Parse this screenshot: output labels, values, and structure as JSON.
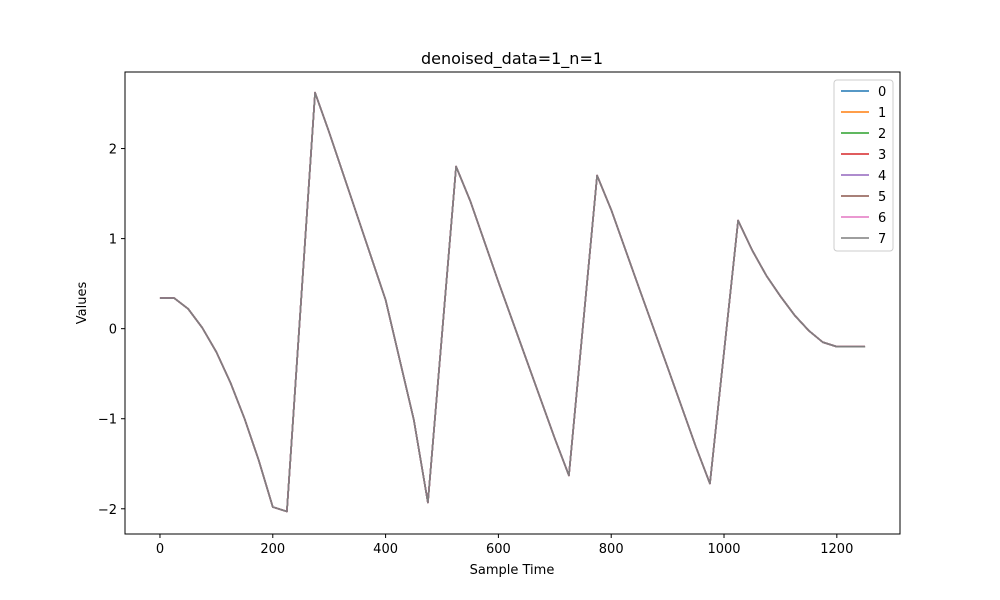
{
  "chart_data": {
    "type": "line",
    "title": "denoised_data=1_n=1",
    "xlabel": "Sample Time",
    "ylabel": "Values",
    "xlim": [
      -62,
      1312
    ],
    "ylim": [
      -2.28,
      2.85
    ],
    "xticks": [
      0,
      200,
      400,
      600,
      800,
      1000,
      1200
    ],
    "yticks": [
      -2,
      -1,
      0,
      1,
      2
    ],
    "xtick_labels": [
      "0",
      "200",
      "400",
      "600",
      "800",
      "1000",
      "1200"
    ],
    "ytick_labels": [
      "−2",
      "−1",
      "0",
      "1",
      "2"
    ],
    "grid": false,
    "legend_position": "top-right",
    "x": [
      0,
      25,
      50,
      75,
      100,
      125,
      150,
      175,
      200,
      225,
      275,
      300,
      350,
      400,
      450,
      475,
      525,
      550,
      600,
      650,
      700,
      725,
      775,
      800,
      850,
      900,
      950,
      975,
      1025,
      1050,
      1075,
      1100,
      1125,
      1150,
      1175,
      1200,
      1250
    ],
    "series": [
      {
        "name": "0",
        "color": "#1f77b4",
        "values": [
          0.34,
          0.34,
          0.22,
          0.01,
          -0.26,
          -0.6,
          -1.0,
          -1.46,
          -1.98,
          -2.03,
          2.62,
          2.18,
          1.25,
          0.32,
          -1.01,
          -1.93,
          1.8,
          1.42,
          0.52,
          -0.35,
          -1.22,
          -1.63,
          1.7,
          1.32,
          0.44,
          -0.43,
          -1.31,
          -1.72,
          1.2,
          0.87,
          0.59,
          0.36,
          0.15,
          -0.02,
          -0.15,
          -0.2,
          -0.2
        ]
      },
      {
        "name": "1",
        "color": "#ff7f0e",
        "values": [
          0.34,
          0.34,
          0.22,
          0.01,
          -0.26,
          -0.6,
          -1.0,
          -1.46,
          -1.98,
          -2.03,
          2.62,
          2.18,
          1.25,
          0.32,
          -1.01,
          -1.93,
          1.8,
          1.42,
          0.52,
          -0.35,
          -1.22,
          -1.63,
          1.7,
          1.32,
          0.44,
          -0.43,
          -1.31,
          -1.72,
          1.2,
          0.87,
          0.59,
          0.36,
          0.15,
          -0.02,
          -0.15,
          -0.2,
          -0.2
        ]
      },
      {
        "name": "2",
        "color": "#2ca02c",
        "values": [
          0.34,
          0.34,
          0.22,
          0.01,
          -0.26,
          -0.6,
          -1.0,
          -1.46,
          -1.98,
          -2.03,
          2.62,
          2.18,
          1.25,
          0.32,
          -1.01,
          -1.93,
          1.8,
          1.42,
          0.52,
          -0.35,
          -1.22,
          -1.63,
          1.7,
          1.32,
          0.44,
          -0.43,
          -1.31,
          -1.72,
          1.2,
          0.87,
          0.59,
          0.36,
          0.15,
          -0.02,
          -0.15,
          -0.2,
          -0.2
        ]
      },
      {
        "name": "3",
        "color": "#d62728",
        "values": [
          0.34,
          0.34,
          0.22,
          0.01,
          -0.26,
          -0.6,
          -1.0,
          -1.46,
          -1.98,
          -2.03,
          2.62,
          2.18,
          1.25,
          0.32,
          -1.01,
          -1.93,
          1.8,
          1.42,
          0.52,
          -0.35,
          -1.22,
          -1.63,
          1.7,
          1.32,
          0.44,
          -0.43,
          -1.31,
          -1.72,
          1.2,
          0.87,
          0.59,
          0.36,
          0.15,
          -0.02,
          -0.15,
          -0.2,
          -0.2
        ]
      },
      {
        "name": "4",
        "color": "#9467bd",
        "values": [
          0.34,
          0.34,
          0.22,
          0.01,
          -0.26,
          -0.6,
          -1.0,
          -1.46,
          -1.98,
          -2.03,
          2.62,
          2.18,
          1.25,
          0.32,
          -1.01,
          -1.93,
          1.8,
          1.42,
          0.52,
          -0.35,
          -1.22,
          -1.63,
          1.7,
          1.32,
          0.44,
          -0.43,
          -1.31,
          -1.72,
          1.2,
          0.87,
          0.59,
          0.36,
          0.15,
          -0.02,
          -0.15,
          -0.2,
          -0.2
        ]
      },
      {
        "name": "5",
        "color": "#8c564b",
        "values": [
          0.34,
          0.34,
          0.22,
          0.01,
          -0.26,
          -0.6,
          -1.0,
          -1.46,
          -1.98,
          -2.03,
          2.62,
          2.18,
          1.25,
          0.32,
          -1.01,
          -1.93,
          1.8,
          1.42,
          0.52,
          -0.35,
          -1.22,
          -1.63,
          1.7,
          1.32,
          0.44,
          -0.43,
          -1.31,
          -1.72,
          1.2,
          0.87,
          0.59,
          0.36,
          0.15,
          -0.02,
          -0.15,
          -0.2,
          -0.2
        ]
      },
      {
        "name": "6",
        "color": "#e377c2",
        "values": [
          0.34,
          0.34,
          0.22,
          0.01,
          -0.26,
          -0.6,
          -1.0,
          -1.46,
          -1.98,
          -2.03,
          2.62,
          2.18,
          1.25,
          0.32,
          -1.01,
          -1.93,
          1.8,
          1.42,
          0.52,
          -0.35,
          -1.22,
          -1.63,
          1.7,
          1.32,
          0.44,
          -0.43,
          -1.31,
          -1.72,
          1.2,
          0.87,
          0.59,
          0.36,
          0.15,
          -0.02,
          -0.15,
          -0.2,
          -0.2
        ]
      },
      {
        "name": "7",
        "color": "#7f7f7f",
        "values": [
          0.34,
          0.34,
          0.22,
          0.01,
          -0.26,
          -0.6,
          -1.0,
          -1.46,
          -1.98,
          -2.03,
          2.62,
          2.18,
          1.25,
          0.32,
          -1.01,
          -1.93,
          1.8,
          1.42,
          0.52,
          -0.35,
          -1.22,
          -1.63,
          1.7,
          1.32,
          0.44,
          -0.43,
          -1.31,
          -1.72,
          1.2,
          0.87,
          0.59,
          0.36,
          0.15,
          -0.02,
          -0.15,
          -0.2,
          -0.2
        ]
      }
    ]
  }
}
